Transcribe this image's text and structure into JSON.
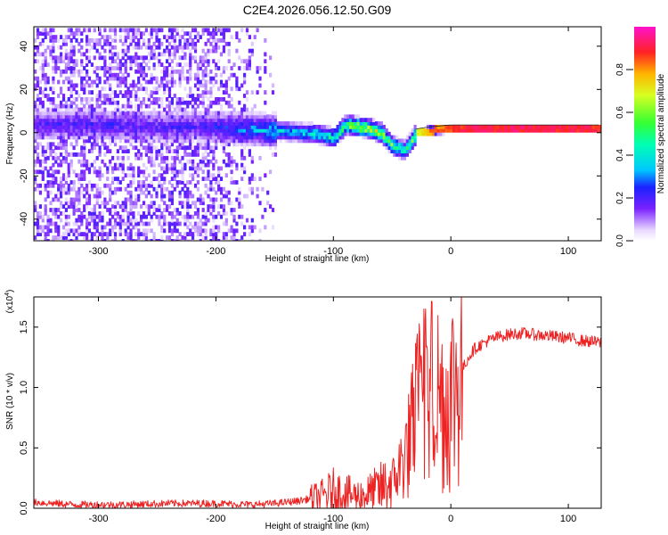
{
  "chart_data": [
    {
      "type": "heatmap",
      "title": "C2E4.2026.056.12.50.G09",
      "xlabel": "Height of straight line (km)",
      "ylabel": "Frequency (Hz)",
      "xlim": [
        -355,
        128
      ],
      "ylim": [
        -50,
        49
      ],
      "xticks": [
        -300,
        -200,
        -100,
        0,
        100
      ],
      "xtick_labels": [
        "-300",
        "-200",
        "-100",
        "0",
        "100"
      ],
      "yticks": [
        40,
        20,
        0,
        -20,
        -40
      ],
      "ytick_labels": [
        "40",
        "20",
        "0",
        "-20",
        "-40"
      ],
      "colorbar": {
        "label": "Normalized spectral amplitude",
        "range": [
          0,
          1
        ],
        "ticks": [
          0.0,
          0.2,
          0.4,
          0.6,
          0.8
        ],
        "tick_labels": [
          "0.0",
          "0.2",
          "0.4",
          "0.6",
          "0.8"
        ]
      },
      "ridge": {
        "x": [
          -355,
          -300,
          -250,
          -210,
          -180,
          -150,
          -120,
          -100,
          -90,
          -80,
          -70,
          -60,
          -50,
          -40,
          -30,
          -20,
          0,
          20,
          40,
          60,
          80,
          100,
          128
        ],
        "f": [
          4,
          4,
          3,
          3,
          2,
          1,
          0,
          -2,
          4,
          3,
          2,
          0,
          -6,
          -8,
          0,
          1,
          2,
          2,
          2,
          2,
          2,
          2,
          2
        ],
        "amp": [
          0.22,
          0.24,
          0.22,
          0.24,
          0.32,
          0.42,
          0.48,
          0.55,
          0.7,
          0.78,
          0.8,
          0.72,
          0.6,
          0.55,
          0.72,
          0.85,
          0.9,
          0.95,
          0.95,
          0.96,
          0.95,
          0.94,
          0.94
        ]
      }
    },
    {
      "type": "line",
      "xlabel": "Height of straight line (km)",
      "ylabel": "SNR (10 * v/v)",
      "y_multiplier": "(x10",
      "y_multiplier_exp": "4",
      "y_multiplier_close": ")",
      "xlim": [
        -355,
        128
      ],
      "ylim": [
        0,
        1.75
      ],
      "xticks": [
        -300,
        -200,
        -100,
        0,
        100
      ],
      "xtick_labels": [
        "-300",
        "-200",
        "-100",
        "0",
        "100"
      ],
      "yticks": [
        0.0,
        0.5,
        1.0,
        1.5
      ],
      "ytick_labels": [
        "0.0",
        "0.5",
        "1.0",
        "1.5"
      ],
      "color": "#ee2222",
      "series": [
        {
          "name": "SNR",
          "x": [
            -355,
            -320,
            -280,
            -240,
            -200,
            -170,
            -150,
            -130,
            -110,
            -100,
            -90,
            -80,
            -70,
            -60,
            -50,
            -45,
            -40,
            -35,
            -30,
            -25,
            -22,
            -20,
            -15,
            -10,
            -5,
            0,
            5,
            10,
            15,
            20,
            30,
            40,
            50,
            60,
            70,
            80,
            90,
            100,
            110,
            120,
            128
          ],
          "y": [
            0.05,
            0.03,
            0.03,
            0.04,
            0.04,
            0.03,
            0.04,
            0.06,
            0.1,
            0.14,
            0.12,
            0.1,
            0.12,
            0.16,
            0.22,
            0.3,
            0.42,
            0.55,
            0.75,
            0.95,
            1.1,
            0.9,
            1.0,
            0.95,
            0.85,
            0.95,
            1.05,
            1.15,
            1.25,
            1.32,
            1.38,
            1.42,
            1.44,
            1.45,
            1.44,
            1.43,
            1.42,
            1.41,
            1.39,
            1.38,
            1.37
          ]
        }
      ]
    }
  ],
  "colors": {
    "line": "#ee2222",
    "ridge_hot": "#ff2222",
    "axis": "#000000"
  }
}
